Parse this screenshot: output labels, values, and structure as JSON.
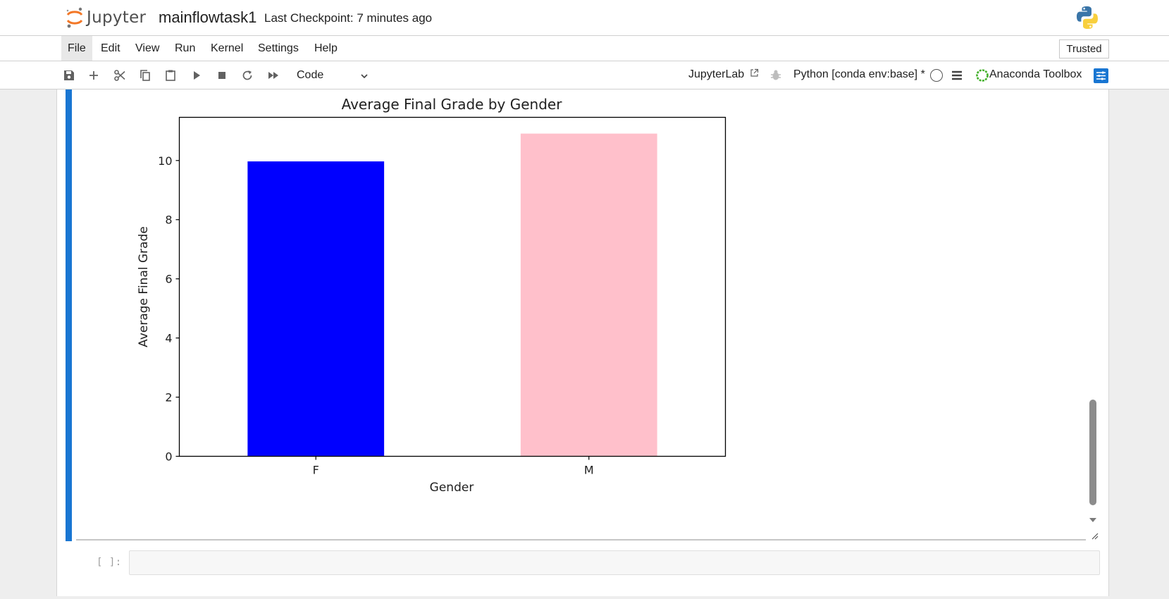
{
  "header": {
    "logo_text": "Jupyter",
    "notebook_title": "mainflowtask1",
    "checkpoint": "Last Checkpoint: 7 minutes ago"
  },
  "menu": {
    "items": [
      "File",
      "Edit",
      "View",
      "Run",
      "Kernel",
      "Settings",
      "Help"
    ],
    "active": "File",
    "trusted": "Trusted"
  },
  "toolbar": {
    "cell_type": "Code",
    "jupyterlab_link": "JupyterLab",
    "kernel": "Python [conda env:base] *",
    "anaconda": "Anaconda Toolbox",
    "icons": [
      "save-icon",
      "add-cell-icon",
      "cut-icon",
      "copy-icon",
      "paste-icon",
      "run-icon",
      "stop-icon",
      "restart-icon",
      "run-all-icon"
    ]
  },
  "colors": {
    "accent": "#1976d2",
    "bar_f": "#0000ff",
    "bar_m": "#ffc0cb"
  },
  "chart_data": {
    "type": "bar",
    "title": "Average Final Grade by Gender",
    "xlabel": "Gender",
    "ylabel": "Average Final Grade",
    "categories": [
      "F",
      "M"
    ],
    "values": [
      9.97,
      10.91
    ],
    "bar_colors": [
      "#0000ff",
      "#ffc0cb"
    ],
    "yticks": [
      0,
      2,
      4,
      6,
      8,
      10
    ],
    "ylim": [
      0,
      11.46
    ],
    "grid": false
  },
  "next_cell": {
    "prompt": "[ ]:",
    "content": ""
  }
}
